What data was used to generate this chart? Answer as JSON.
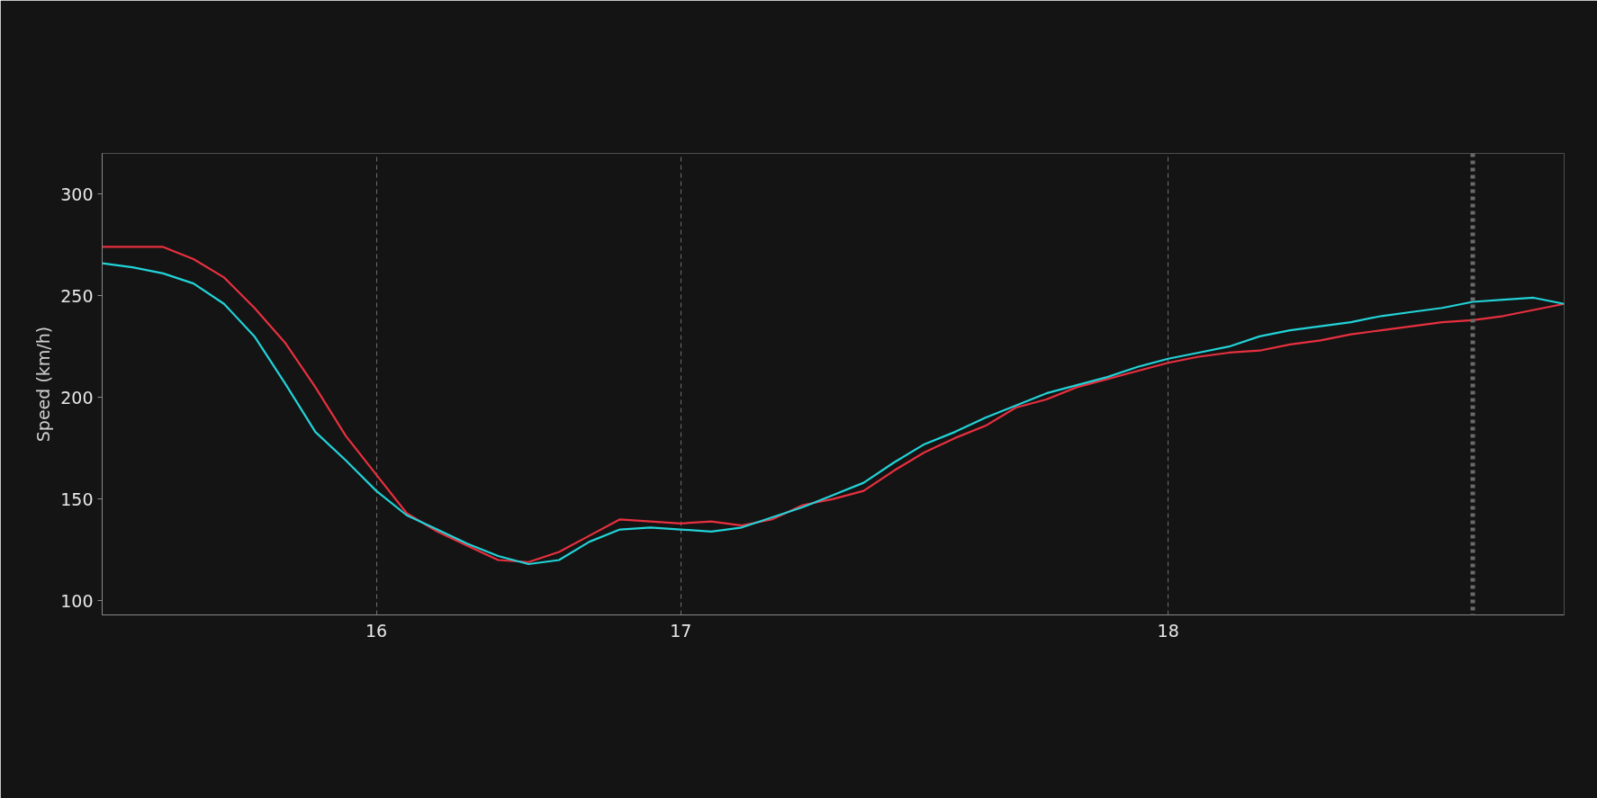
{
  "chart_data": {
    "type": "line",
    "ylabel": "Speed (km/h)",
    "categories": [
      null,
      null,
      null,
      null,
      null,
      null,
      null,
      null,
      null,
      "16",
      null,
      null,
      null,
      null,
      null,
      null,
      null,
      null,
      null,
      "17",
      null,
      null,
      null,
      null,
      null,
      null,
      null,
      null,
      null,
      null,
      null,
      null,
      null,
      null,
      null,
      "18",
      null,
      null,
      null,
      null,
      null,
      null,
      null,
      null,
      null,
      null,
      null,
      null,
      null
    ],
    "ylim": [
      93,
      320
    ],
    "yticks": [
      100,
      150,
      200,
      250,
      300
    ],
    "grid": "x",
    "marker": "none",
    "line_style": "solid",
    "series": [
      {
        "color": "#e8303f",
        "values": [
          274,
          274,
          274,
          268,
          259,
          244,
          227,
          205,
          181,
          162,
          143,
          134,
          127,
          120,
          119,
          124,
          132,
          140,
          139,
          138,
          139,
          137,
          140,
          147,
          150,
          154,
          164,
          173,
          180,
          186,
          195,
          199,
          205,
          209,
          213,
          217,
          220,
          222,
          223,
          226,
          228,
          231,
          233,
          235,
          237,
          238,
          240,
          243,
          246
        ]
      },
      {
        "color": "#22d3d8",
        "values": [
          266,
          264,
          261,
          256,
          246,
          230,
          207,
          183,
          169,
          154,
          142,
          135,
          128,
          122,
          118,
          120,
          129,
          135,
          136,
          135,
          134,
          136,
          141,
          146,
          152,
          158,
          168,
          177,
          183,
          190,
          196,
          202,
          206,
          210,
          215,
          219,
          222,
          225,
          230,
          233,
          235,
          237,
          240,
          242,
          244,
          247,
          248,
          249,
          246
        ]
      }
    ]
  }
}
